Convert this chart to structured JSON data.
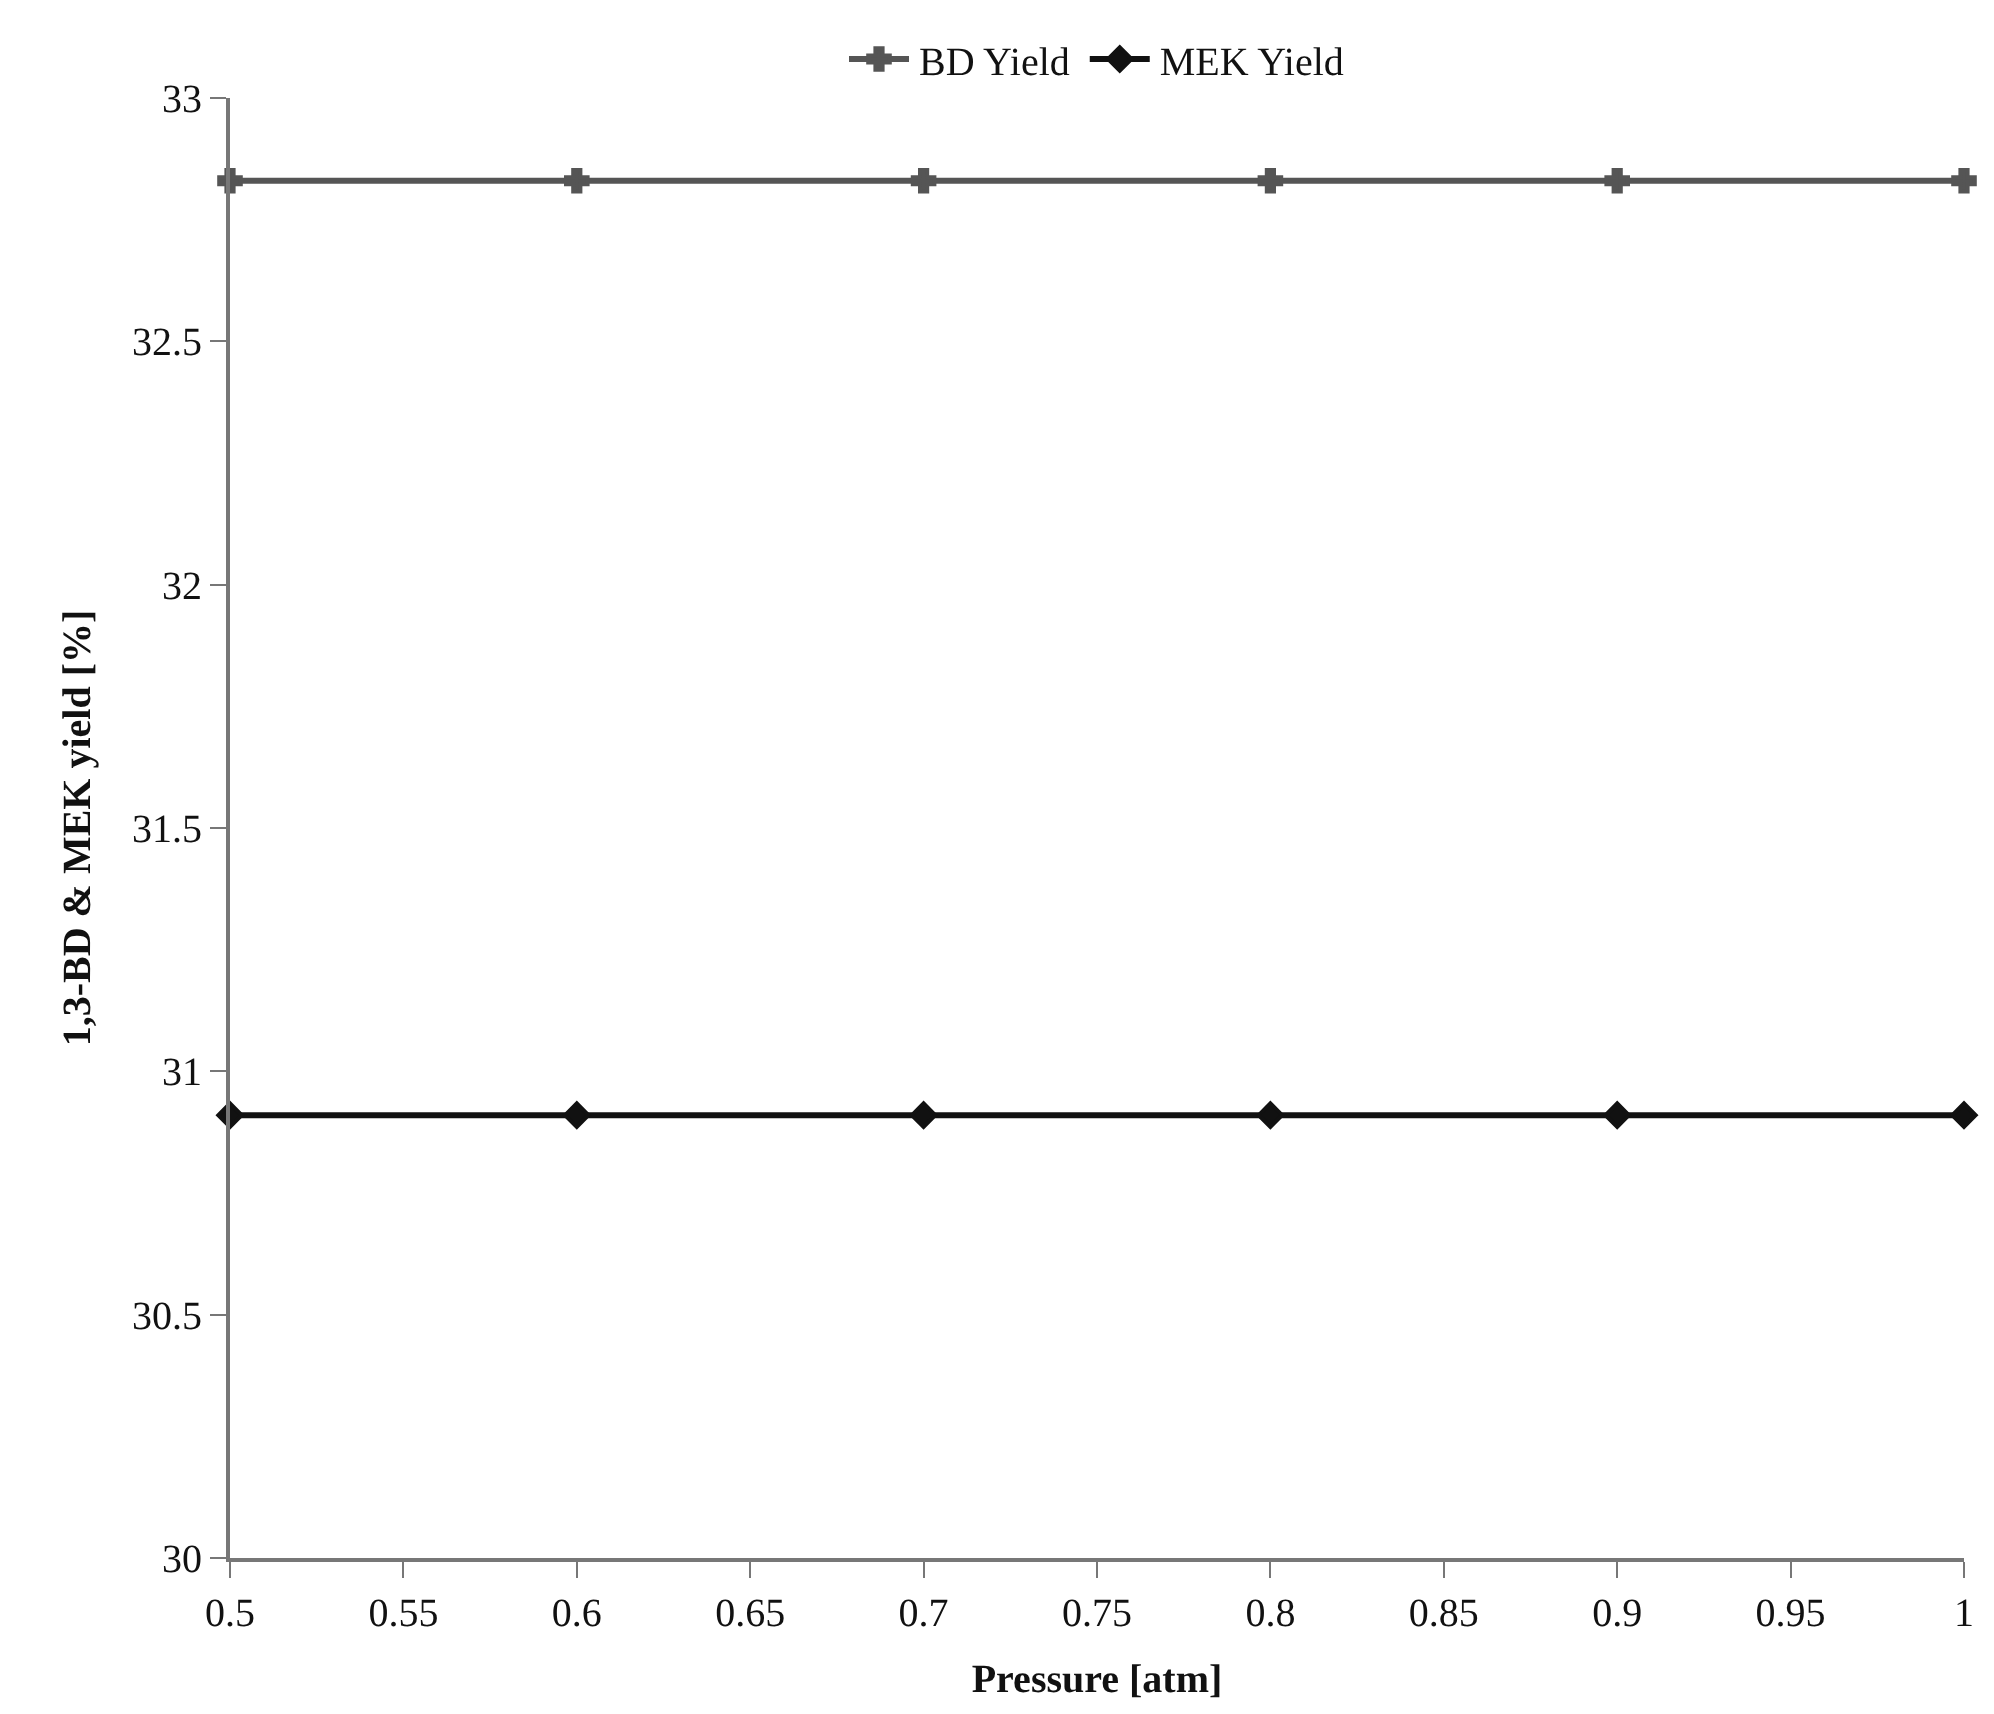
{
  "chart_data": {
    "type": "line",
    "xlabel": "Pressure [atm]",
    "ylabel": "1,3-BD & MEK yield [%]",
    "x": [
      0.5,
      0.6,
      0.7,
      0.8,
      0.9,
      1.0
    ],
    "series": [
      {
        "name": "BD Yield",
        "color": "#555555",
        "marker": "cross",
        "values": [
          32.83,
          32.83,
          32.83,
          32.83,
          32.83,
          32.83
        ]
      },
      {
        "name": "MEK Yield",
        "color": "#111111",
        "marker": "diamond",
        "values": [
          30.91,
          30.91,
          30.91,
          30.91,
          30.91,
          30.91
        ]
      }
    ],
    "xlim": [
      0.5,
      1.0
    ],
    "xticks": [
      0.5,
      0.55,
      0.6,
      0.65,
      0.7,
      0.75,
      0.8,
      0.85,
      0.9,
      0.95,
      1
    ],
    "ylim": [
      30,
      33
    ],
    "yticks": [
      30,
      30.5,
      31,
      31.5,
      32,
      32.5,
      33
    ],
    "legend": "top",
    "line_style": "solid"
  }
}
